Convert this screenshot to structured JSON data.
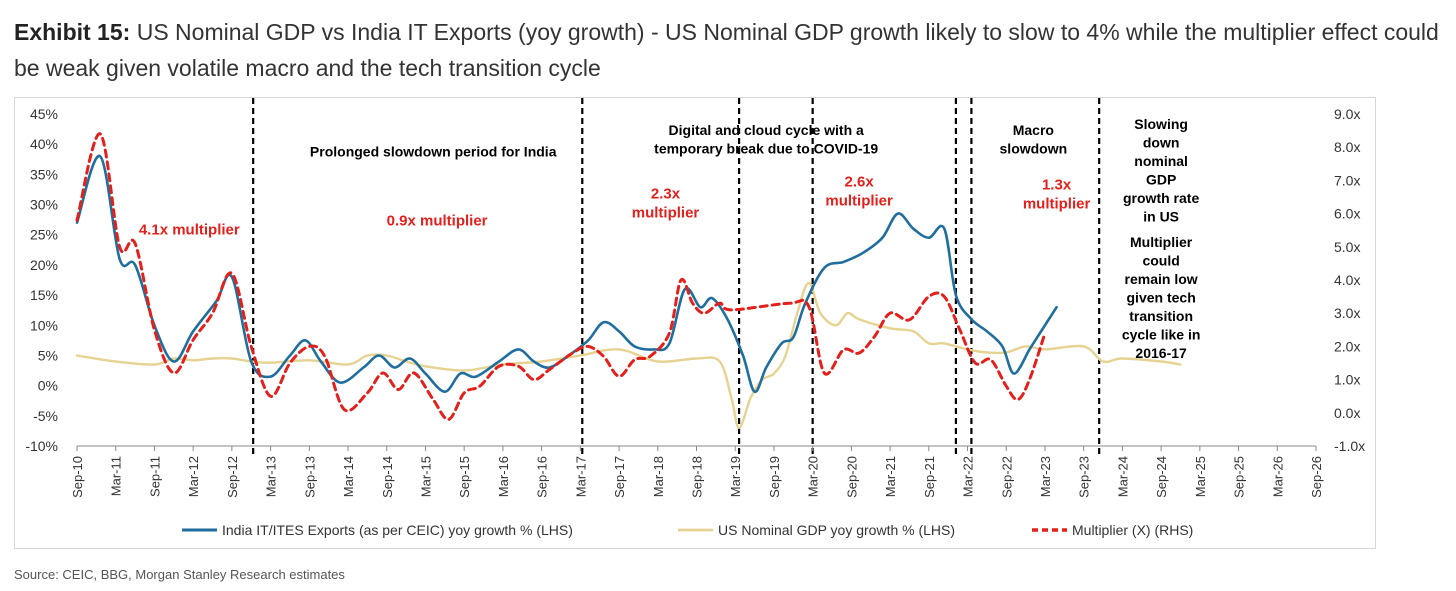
{
  "header": {
    "lead": "Exhibit 15:",
    "text": " US Nominal GDP vs India IT Exports (yoy growth) - US Nominal GDP growth likely to slow to 4% while the multiplier effect could be weak given volatile macro and the tech transition cycle"
  },
  "source": "Source: CEIC, BBG, Morgan Stanley Research estimates",
  "colors": {
    "india": "#1f6e9e",
    "usgdp": "#e6d291",
    "multiplier": "#e3201b",
    "annotation_red": "#e3201b",
    "text": "#000000"
  },
  "chart_data": {
    "type": "line",
    "title": "US Nominal GDP vs India IT Exports (yoy growth)",
    "x_ticks": [
      "Sep-10",
      "Mar-11",
      "Sep-11",
      "Mar-12",
      "Sep-12",
      "Mar-13",
      "Sep-13",
      "Mar-14",
      "Sep-14",
      "Mar-15",
      "Sep-15",
      "Mar-16",
      "Sep-16",
      "Mar-17",
      "Sep-17",
      "Mar-18",
      "Sep-18",
      "Mar-19",
      "Sep-19",
      "Mar-20",
      "Sep-20",
      "Mar-21",
      "Sep-21",
      "Mar-22",
      "Sep-22",
      "Mar-23",
      "Sep-23",
      "Mar-24",
      "Sep-24",
      "Mar-25",
      "Sep-25",
      "Mar-26",
      "Sep-26"
    ],
    "y_left": {
      "min": -10,
      "max": 45,
      "step": 5,
      "suffix": "%",
      "ticks": [
        "-10%",
        "-5%",
        "0%",
        "5%",
        "10%",
        "15%",
        "20%",
        "25%",
        "30%",
        "35%",
        "40%",
        "45%"
      ]
    },
    "y_right": {
      "min": -1,
      "max": 9,
      "step": 1,
      "suffix": "x",
      "ticks": [
        "-1.0x",
        "0.0x",
        "1.0x",
        "2.0x",
        "3.0x",
        "4.0x",
        "5.0x",
        "6.0x",
        "7.0x",
        "8.0x",
        "9.0x"
      ]
    },
    "series": [
      {
        "name": "India IT/ITES Exports  (as per CEIC) yoy growth % (LHS)",
        "axis": "left",
        "style": "solid",
        "points": [
          [
            0,
            27
          ],
          [
            0.6,
            38
          ],
          [
            1.1,
            21
          ],
          [
            1.5,
            20
          ],
          [
            2,
            10
          ],
          [
            2.5,
            4
          ],
          [
            3,
            9
          ],
          [
            3.6,
            14
          ],
          [
            4,
            18
          ],
          [
            4.5,
            4
          ],
          [
            5,
            1.5
          ],
          [
            5.5,
            5
          ],
          [
            5.9,
            7.5
          ],
          [
            6.3,
            4
          ],
          [
            6.8,
            0.5
          ],
          [
            7.4,
            3
          ],
          [
            7.8,
            5
          ],
          [
            8.2,
            3
          ],
          [
            8.6,
            4.5
          ],
          [
            9,
            2
          ],
          [
            9.5,
            -1
          ],
          [
            9.9,
            2
          ],
          [
            10.3,
            1.5
          ],
          [
            10.9,
            4
          ],
          [
            11.4,
            6
          ],
          [
            11.8,
            4
          ],
          [
            12.2,
            3
          ],
          [
            12.7,
            5
          ],
          [
            13.2,
            7.5
          ],
          [
            13.6,
            10.5
          ],
          [
            14,
            9
          ],
          [
            14.4,
            6.5
          ],
          [
            14.9,
            6
          ],
          [
            15.3,
            7
          ],
          [
            15.7,
            16
          ],
          [
            16.1,
            13
          ],
          [
            16.4,
            14.5
          ],
          [
            16.8,
            11
          ],
          [
            17.2,
            5
          ],
          [
            17.5,
            -1
          ],
          [
            17.8,
            3
          ],
          [
            18.2,
            7
          ],
          [
            18.5,
            8
          ],
          [
            18.8,
            13.5
          ],
          [
            19.3,
            19.5
          ],
          [
            19.8,
            20.5
          ],
          [
            20.3,
            22
          ],
          [
            20.8,
            24.5
          ],
          [
            21.2,
            28.5
          ],
          [
            21.6,
            26
          ],
          [
            22,
            24.5
          ],
          [
            22.4,
            26
          ],
          [
            22.7,
            15
          ],
          [
            23.1,
            11
          ],
          [
            23.5,
            9
          ],
          [
            23.9,
            6.5
          ],
          [
            24.2,
            2
          ],
          [
            24.6,
            6
          ],
          [
            24.8,
            8
          ],
          [
            25.3,
            13
          ]
        ]
      },
      {
        "name": "US Nominal GDP yoy growth % (LHS)",
        "axis": "left",
        "style": "solid",
        "points": [
          [
            0,
            5
          ],
          [
            1,
            4
          ],
          [
            2,
            3.5
          ],
          [
            2.5,
            4.5
          ],
          [
            3,
            4.2
          ],
          [
            3.5,
            4.5
          ],
          [
            4,
            4.5
          ],
          [
            4.5,
            4
          ],
          [
            5,
            3.8
          ],
          [
            6,
            4.2
          ],
          [
            7,
            3.5
          ],
          [
            7.5,
            5
          ],
          [
            8,
            5
          ],
          [
            8.5,
            4
          ],
          [
            9,
            3.2
          ],
          [
            10,
            2.5
          ],
          [
            11,
            3.5
          ],
          [
            12,
            4
          ],
          [
            13,
            5
          ],
          [
            14,
            6
          ],
          [
            15,
            4
          ],
          [
            16,
            4.5
          ],
          [
            16.6,
            4
          ],
          [
            16.9,
            -2
          ],
          [
            17.1,
            -7
          ],
          [
            17.4,
            -2
          ],
          [
            17.7,
            1
          ],
          [
            18,
            2
          ],
          [
            18.3,
            5
          ],
          [
            18.6,
            12
          ],
          [
            18.9,
            17
          ],
          [
            19.2,
            12
          ],
          [
            19.6,
            10
          ],
          [
            19.9,
            12
          ],
          [
            20.2,
            11
          ],
          [
            21,
            9.5
          ],
          [
            21.6,
            9
          ],
          [
            22,
            7
          ],
          [
            22.4,
            7
          ],
          [
            23,
            6
          ],
          [
            23.5,
            5.5
          ],
          [
            24,
            5.5
          ],
          [
            24.5,
            6.5
          ],
          [
            25,
            6
          ],
          [
            26,
            6.5
          ],
          [
            26.5,
            4
          ],
          [
            27,
            4.5
          ],
          [
            28,
            4
          ],
          [
            28.5,
            3.5
          ]
        ]
      },
      {
        "name": "Multiplier (X) (RHS)",
        "axis": "right",
        "style": "dashed",
        "points": [
          [
            0,
            5.8
          ],
          [
            0.6,
            8.4
          ],
          [
            1.1,
            5
          ],
          [
            1.5,
            5.1
          ],
          [
            2,
            2.5
          ],
          [
            2.5,
            1.2
          ],
          [
            3,
            2.2
          ],
          [
            3.5,
            3
          ],
          [
            4,
            4.2
          ],
          [
            4.5,
            2
          ],
          [
            5,
            0.5
          ],
          [
            5.5,
            1.5
          ],
          [
            6,
            2
          ],
          [
            6.4,
            1.7
          ],
          [
            6.9,
            0.1
          ],
          [
            7.5,
            0.6
          ],
          [
            7.9,
            1.2
          ],
          [
            8.3,
            0.7
          ],
          [
            8.7,
            1.2
          ],
          [
            9.2,
            0.4
          ],
          [
            9.6,
            -0.2
          ],
          [
            10,
            0.6
          ],
          [
            10.4,
            0.8
          ],
          [
            10.9,
            1.4
          ],
          [
            11.4,
            1.4
          ],
          [
            11.8,
            1
          ],
          [
            12.2,
            1.3
          ],
          [
            12.8,
            1.8
          ],
          [
            13.2,
            2
          ],
          [
            13.6,
            1.7
          ],
          [
            14,
            1.1
          ],
          [
            14.4,
            1.6
          ],
          [
            14.8,
            1.7
          ],
          [
            15.3,
            2.4
          ],
          [
            15.6,
            4
          ],
          [
            15.9,
            3.3
          ],
          [
            16.2,
            3
          ],
          [
            16.6,
            3.3
          ],
          [
            16.9,
            3.1
          ],
          [
            18.4,
            3.3
          ],
          [
            18.9,
            3.2
          ],
          [
            19.3,
            1.2
          ],
          [
            19.8,
            1.9
          ],
          [
            20.2,
            1.8
          ],
          [
            20.6,
            2.3
          ],
          [
            21,
            3
          ],
          [
            21.5,
            2.8
          ],
          [
            22,
            3.5
          ],
          [
            22.4,
            3.5
          ],
          [
            22.8,
            2.5
          ],
          [
            23.2,
            1.5
          ],
          [
            23.6,
            1.6
          ],
          [
            24,
            0.8
          ],
          [
            24.3,
            0.4
          ],
          [
            24.6,
            1
          ],
          [
            25,
            2.4
          ]
        ]
      }
    ],
    "dividers_x": [
      4.55,
      13.05,
      17.1,
      19.0,
      22.7,
      23.1,
      26.4
    ],
    "annotations": [
      {
        "text": "Prolonged slowdown period for India",
        "x": 9.2,
        "y_pct": 38.0,
        "color": "black",
        "lines": [
          "Prolonged slowdown period for India"
        ]
      },
      {
        "text": "Digital and cloud cycle with a temporary break due to COVID-19",
        "x": 17.8,
        "y_pct": 41.5,
        "color": "black",
        "lines": [
          "Digital and cloud cycle with a",
          "temporary break due to COVID-19"
        ]
      },
      {
        "text": "Macro slowdown",
        "x": 24.7,
        "y_pct": 41.5,
        "color": "black",
        "lines": [
          "Macro",
          "slowdown"
        ]
      },
      {
        "text": "Slowing down nominal GDP growth rate in US",
        "x": 28.0,
        "y_pct": 42.5,
        "color": "black",
        "lines": [
          "Slowing",
          "down",
          "nominal",
          "GDP",
          "growth rate",
          "in US"
        ]
      },
      {
        "text": "Multiplier could remain low given tech transition cycle like in 2016-17",
        "x": 28.0,
        "y_pct": 23.0,
        "color": "black",
        "lines": [
          "Multiplier",
          "could",
          "remain low",
          "given tech",
          "transition",
          "cycle like in",
          "2016-17"
        ]
      },
      {
        "text": "4.1x multiplier",
        "x": 2.9,
        "y_pct": 25.0,
        "color": "red",
        "lines": [
          "4.1x multiplier"
        ]
      },
      {
        "text": "0.9x multiplier",
        "x": 9.3,
        "y_pct": 26.5,
        "color": "red",
        "lines": [
          "0.9x multiplier"
        ]
      },
      {
        "text": "2.3x multiplier",
        "x": 15.2,
        "y_pct": 31.0,
        "color": "red",
        "lines": [
          "2.3x",
          "multiplier"
        ]
      },
      {
        "text": "2.6x multiplier",
        "x": 20.2,
        "y_pct": 33.0,
        "color": "red",
        "lines": [
          "2.6x",
          "multiplier"
        ]
      },
      {
        "text": "1.3x multiplier",
        "x": 25.3,
        "y_pct": 32.5,
        "color": "red",
        "lines": [
          "1.3x",
          "multiplier"
        ]
      }
    ],
    "legend": {
      "position": "bottom"
    }
  }
}
